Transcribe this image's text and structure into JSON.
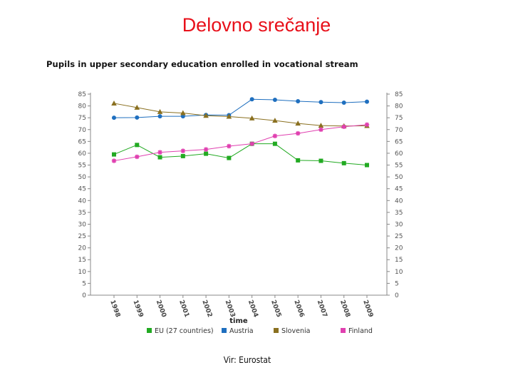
{
  "slide": {
    "title": "Delovno srečanje",
    "source": "Vir: Eurostat"
  },
  "chart_data": {
    "type": "line",
    "title": "Pupils in upper secondary education enrolled in vocational stream",
    "xlabel": "time",
    "ylabel": "",
    "categories": [
      "1998",
      "1999",
      "2000",
      "2001",
      "2002",
      "2003",
      "2004",
      "2005",
      "2006",
      "2007",
      "2008",
      "2009"
    ],
    "ylim": [
      0,
      85
    ],
    "yticks": [
      0,
      5,
      10,
      15,
      20,
      25,
      30,
      35,
      40,
      45,
      50,
      55,
      60,
      65,
      70,
      75,
      80,
      85
    ],
    "y_axes": "left-and-right",
    "grid": false,
    "legend_position": "bottom",
    "series": [
      {
        "name": "EU (27 countries)",
        "color": "#22aa22",
        "marker": "square",
        "values": [
          59.5,
          63.5,
          58.3,
          58.8,
          59.8,
          58.0,
          64.0,
          64.0,
          57.0,
          56.8,
          55.8,
          55.0
        ]
      },
      {
        "name": "Austria",
        "color": "#1f6fbf",
        "marker": "circle",
        "values": [
          75.0,
          75.1,
          75.6,
          75.6,
          76.2,
          76.1,
          82.8,
          82.6,
          82.0,
          81.6,
          81.4,
          81.8
        ]
      },
      {
        "name": "Slovenia",
        "color": "#8a7020",
        "marker": "triangle",
        "values": [
          81.1,
          79.3,
          77.5,
          77.0,
          75.9,
          75.5,
          74.8,
          73.8,
          72.6,
          71.7,
          71.5,
          71.6
        ]
      },
      {
        "name": "Finland",
        "color": "#e040b0",
        "marker": "star",
        "values": [
          56.8,
          58.5,
          60.4,
          61.0,
          61.6,
          63.0,
          64.0,
          67.3,
          68.4,
          70.0,
          71.2,
          72.1
        ]
      }
    ]
  }
}
